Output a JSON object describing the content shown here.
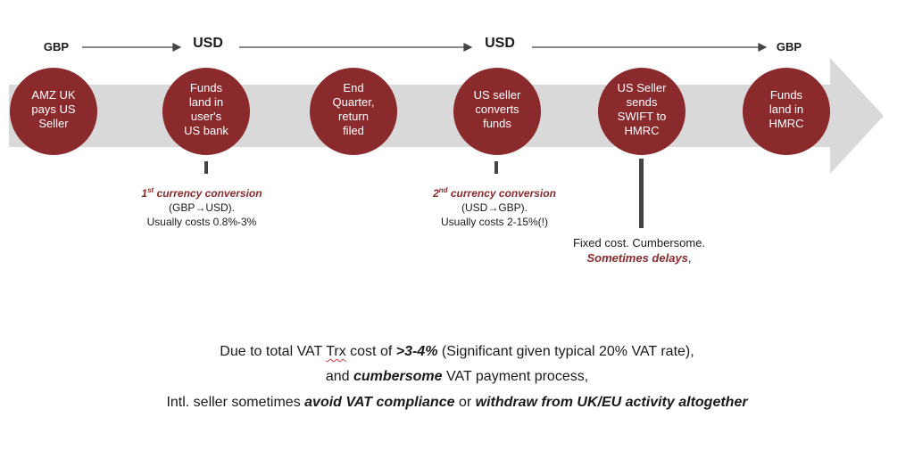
{
  "currencies": [
    "GBP",
    "USD",
    "USD",
    "GBP"
  ],
  "steps": [
    "AMZ UK\npays US\nSeller",
    "Funds\nland in\nuser's\nUS bank",
    "End\nQuarter,\nreturn\nfiled",
    "US seller\nconverts\nfunds",
    "US Seller\nsends\nSWIFT to\nHMRC",
    "Funds\nland in\nHMRC"
  ],
  "notes": {
    "first": {
      "ordinal": "1",
      "sup": "st",
      "title": " currency conversion",
      "line2": "(GBP→USD).",
      "line3": "Usually costs 0.8%-3%"
    },
    "second": {
      "ordinal": "2",
      "sup": "nd",
      "title": " currency conversion",
      "line2": "(USD→GBP).",
      "line3": "Usually costs 2-15%(!)"
    },
    "third": {
      "line1": "Fixed cost. Cumbersome.",
      "line2": "Sometimes delays",
      "line2_suffix": ","
    }
  },
  "summary": {
    "l1_a": "Due to total VAT ",
    "l1_trx": "Trx",
    "l1_b": " cost of ",
    "l1_bold": ">3-4%",
    "l1_c": " (Significant given typical 20% VAT rate),",
    "l2_a": "and ",
    "l2_bold": "cumbersome",
    "l2_b": " VAT payment process,",
    "l3_a": "Intl. seller sometimes ",
    "l3_bold1": "avoid VAT compliance",
    "l3_b": " or ",
    "l3_bold2": "withdraw from UK/EU activity altogether"
  },
  "colors": {
    "circle": "#8b2a2d",
    "band": "#d9d9d9",
    "accent": "#8b2a2d"
  }
}
